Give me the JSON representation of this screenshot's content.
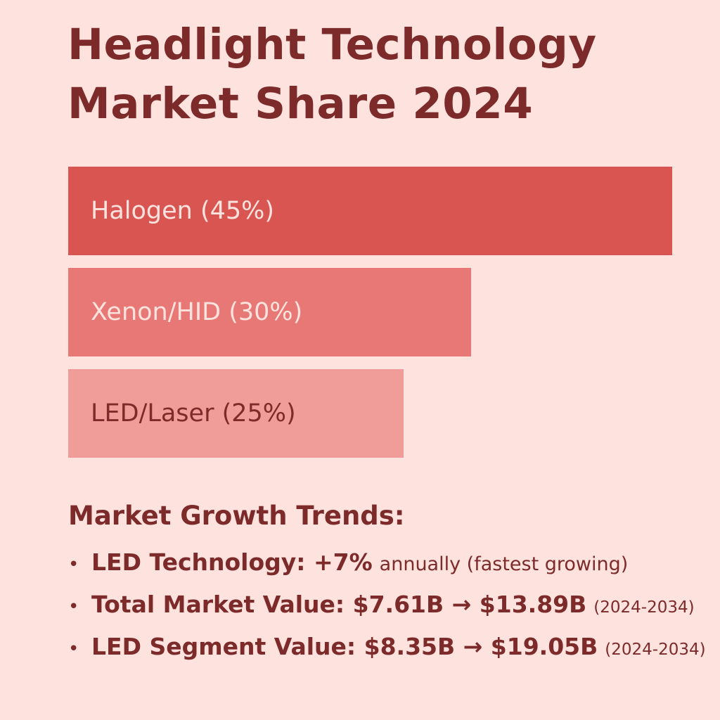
{
  "chart_data": {
    "type": "bar",
    "orientation": "horizontal",
    "title_line1": "Headlight Technology",
    "title_line2": "Market Share 2024",
    "categories": [
      "Halogen (45%)",
      "Xenon/HID (30%)",
      "LED/Laser (25%)"
    ],
    "values": [
      45,
      30,
      25
    ],
    "unit": "%",
    "colors": [
      "#d95552",
      "#e87875",
      "#f09c98"
    ],
    "label_colors": [
      "#fde2dd",
      "#fde2dd",
      "#7d2a2a"
    ],
    "xlim": [
      0,
      45
    ],
    "grid": false
  },
  "trends": {
    "heading": "Market Growth Trends:",
    "items": [
      {
        "main": "LED Technology: +7%",
        "sub": "annually (fastest growing)",
        "small": ""
      },
      {
        "main": "Total Market Value: $7.61B → $13.89B",
        "sub": "",
        "small": "(2024-2034)"
      },
      {
        "main": "LED Segment Value: $8.35B → $19.05B",
        "sub": "",
        "small": "(2024-2034)"
      }
    ]
  },
  "colors": {
    "background": "#fde2dd",
    "text": "#7d2a2a"
  }
}
